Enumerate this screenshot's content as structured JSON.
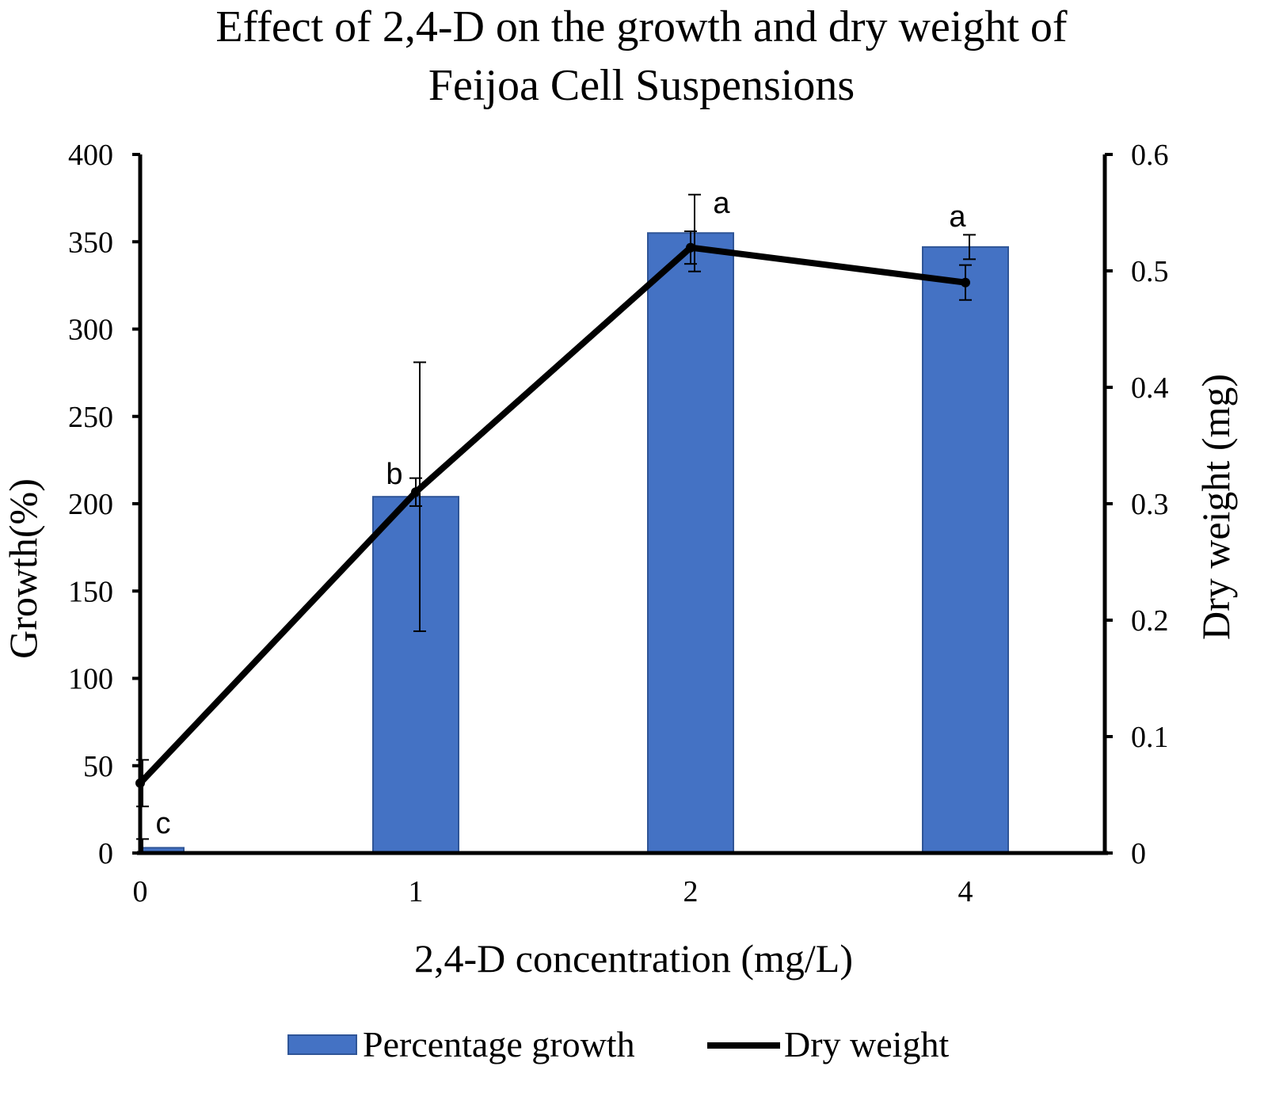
{
  "chart_data": {
    "type": "bar+line",
    "title_lines": [
      "Effect of 2,4-D on the growth and dry weight of",
      "Feijoa Cell Suspensions"
    ],
    "xlabel": "2,4-D concentration (mg/L)",
    "ylabel_left": "Growth(%)",
    "ylabel_right": "Dry weight (mg)",
    "categories": [
      "0",
      "1",
      "2",
      "4"
    ],
    "ylim_left": [
      0,
      400
    ],
    "yticks_left": [
      0,
      50,
      100,
      150,
      200,
      250,
      300,
      350,
      400
    ],
    "ylim_right": [
      0,
      0.6
    ],
    "yticks_right": [
      0,
      0.1,
      0.2,
      0.3,
      0.4,
      0.5,
      0.6
    ],
    "grid": false,
    "legend_position": "bottom",
    "series": [
      {
        "name": "Percentage growth",
        "kind": "bar",
        "axis": "left",
        "color": "#4472C4",
        "edge_color": "#2F5597",
        "values": [
          3,
          204,
          355,
          347
        ],
        "error": [
          5,
          77,
          22,
          7
        ],
        "letters": [
          "c",
          "b",
          "a",
          "a"
        ]
      },
      {
        "name": "Dry weight",
        "kind": "line",
        "axis": "right",
        "color": "#000000",
        "values": [
          0.06,
          0.31,
          0.52,
          0.49
        ],
        "error": [
          0.02,
          0.012,
          0.014,
          0.015
        ]
      }
    ],
    "legend": [
      {
        "label": "Percentage growth",
        "kind": "bar"
      },
      {
        "label": "Dry weight",
        "kind": "line"
      }
    ]
  }
}
